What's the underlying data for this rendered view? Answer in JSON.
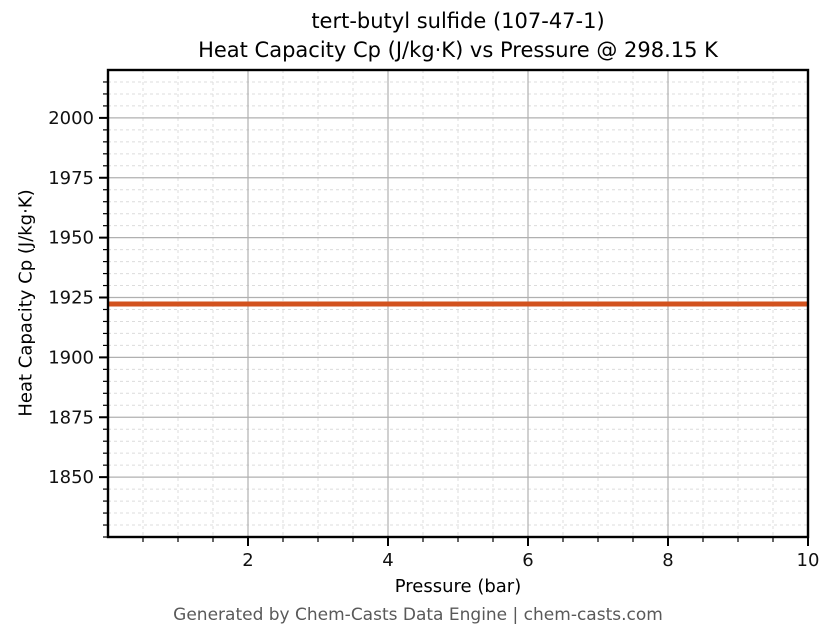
{
  "title": {
    "line1": "tert-butyl sulfide (107-47-1)",
    "line2": "Heat Capacity Cp (J/kg·K) vs Pressure @ 298.15 K"
  },
  "footer": "Generated by Chem-Casts Data Engine | chem-casts.com",
  "colors": {
    "line": "#d2521e",
    "major_grid": "#b0b0b0",
    "minor_grid": "#dcdcdc",
    "frame": "#000000",
    "tick_label": "#111111",
    "footer_text": "#595959"
  },
  "chart_data": {
    "type": "line",
    "title": "tert-butyl sulfide (107-47-1)\nHeat Capacity Cp (J/kg·K) vs Pressure @ 298.15 K",
    "xlabel": "Pressure (bar)",
    "ylabel": "Heat Capacity Cp (J/kg·K)",
    "xlim": [
      0,
      10
    ],
    "ylim": [
      1825,
      2020
    ],
    "x_major_ticks": [
      2,
      4,
      6,
      8,
      10
    ],
    "x_minor_step": 0.5,
    "y_major_ticks": [
      1850,
      1875,
      1900,
      1925,
      1950,
      1975,
      2000
    ],
    "y_minor_step": 5,
    "grid": "major-solid, minor-dashed",
    "legend": "none",
    "series": [
      {
        "name": "Heat Capacity Cp",
        "color": "#d2521e",
        "x": [
          0,
          10
        ],
        "y": [
          1922.3,
          1922.3
        ],
        "note": "constant (pressure-independent) value ≈ 1922.3 J/kg·K across 0–10 bar"
      }
    ]
  }
}
